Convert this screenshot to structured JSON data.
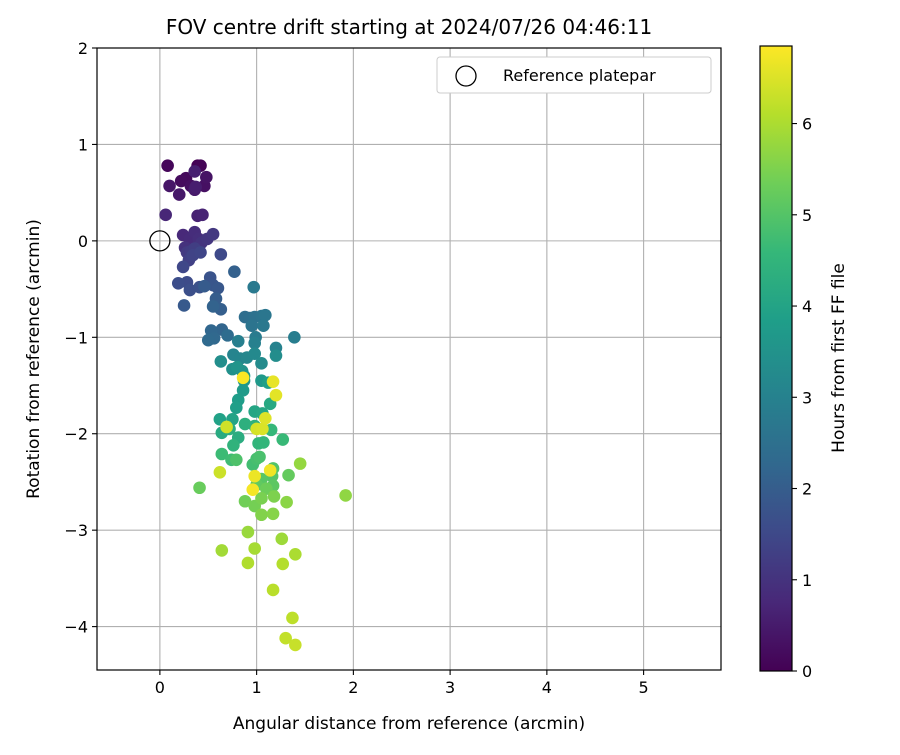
{
  "chart_data": {
    "type": "scatter",
    "title": "FOV centre drift starting at 2024/07/26 04:46:11",
    "xlabel": "Angular distance from reference (arcmin)",
    "ylabel": "Rotation from reference (arcmin)",
    "xlim": [
      -0.65,
      5.8
    ],
    "ylim": [
      -4.45,
      2.0
    ],
    "x_ticks": [
      0,
      1,
      2,
      3,
      4,
      5
    ],
    "y_ticks": [
      2,
      1,
      0,
      -1,
      -2,
      -3,
      -4
    ],
    "x_tick_labels": [
      "0",
      "1",
      "2",
      "3",
      "4",
      "5"
    ],
    "y_tick_labels": [
      "2",
      "1",
      "0",
      "−1",
      "−2",
      "−3",
      "−4"
    ],
    "grid": true,
    "legend": {
      "placement": "top-right",
      "entries": [
        "Reference platepar"
      ]
    },
    "reference_point": {
      "x": 0,
      "y": 0,
      "marker": "open-circle"
    },
    "colorbar": {
      "label": "Hours from first FF file",
      "range": [
        0,
        6.85
      ],
      "ticks": [
        0,
        1,
        2,
        3,
        4,
        5,
        6
      ],
      "tick_labels": [
        "0",
        "1",
        "2",
        "3",
        "4",
        "5",
        "6"
      ],
      "colormap": "viridis",
      "colors": [
        "#440154",
        "#482878",
        "#3e4989",
        "#31688e",
        "#26828e",
        "#1f9e89",
        "#35b779",
        "#6ece58",
        "#b5de2b",
        "#fde725"
      ]
    },
    "series": [
      {
        "points": [
          [
            0.39,
            0.78
          ],
          [
            0.42,
            0.78
          ],
          [
            0.08,
            0.78
          ],
          [
            0.27,
            0.65
          ],
          [
            0.22,
            0.62
          ],
          [
            0.32,
            0.57
          ],
          [
            0.46,
            0.57
          ],
          [
            0.48,
            0.66
          ],
          [
            0.1,
            0.57
          ],
          [
            0.2,
            0.48
          ],
          [
            0.36,
            0.53
          ],
          [
            0.37,
            0.56
          ],
          [
            0.36,
            0.72
          ],
          [
            0.39,
            0.26
          ],
          [
            0.44,
            0.27
          ],
          [
            0.06,
            0.27
          ],
          [
            0.24,
            0.06
          ],
          [
            0.31,
            0.02
          ],
          [
            0.36,
            0.09
          ],
          [
            0.4,
            0.02
          ],
          [
            0.26,
            -0.07
          ],
          [
            0.43,
            -0.02
          ],
          [
            0.49,
            0.02
          ],
          [
            0.55,
            0.07
          ],
          [
            0.28,
            -0.12
          ],
          [
            0.32,
            -0.11
          ],
          [
            0.36,
            -0.08
          ],
          [
            0.3,
            -0.2
          ],
          [
            0.34,
            -0.15
          ],
          [
            0.42,
            -0.12
          ],
          [
            0.24,
            -0.27
          ],
          [
            0.63,
            -0.14
          ],
          [
            0.28,
            -0.43
          ],
          [
            0.19,
            -0.44
          ],
          [
            0.31,
            -0.51
          ],
          [
            0.41,
            -0.48
          ],
          [
            0.52,
            -0.38
          ],
          [
            0.55,
            -0.46
          ],
          [
            0.6,
            -0.49
          ],
          [
            0.25,
            -0.67
          ],
          [
            0.46,
            -0.47
          ],
          [
            0.58,
            -0.6
          ],
          [
            0.63,
            -0.71
          ],
          [
            0.77,
            -0.32
          ],
          [
            0.55,
            -0.68
          ],
          [
            0.64,
            -0.92
          ],
          [
            0.53,
            -0.93
          ],
          [
            0.56,
            -1.01
          ],
          [
            0.5,
            -1.03
          ],
          [
            0.7,
            -0.98
          ]
        ]
      },
      {
        "points": [
          [
            0.88,
            -0.79
          ],
          [
            0.93,
            -0.8
          ],
          [
            0.98,
            -0.79
          ],
          [
            1.05,
            -0.78
          ],
          [
            0.95,
            -0.88
          ],
          [
            1.09,
            -0.77
          ],
          [
            1.07,
            -0.88
          ],
          [
            0.97,
            -0.48
          ],
          [
            0.99,
            -1.0
          ],
          [
            1.39,
            -1.0
          ],
          [
            0.81,
            -1.04
          ],
          [
            0.98,
            -1.06
          ],
          [
            1.2,
            -1.11
          ],
          [
            0.76,
            -1.18
          ],
          [
            0.83,
            -1.22
          ],
          [
            0.9,
            -1.21
          ],
          [
            0.98,
            -1.17
          ],
          [
            1.05,
            -1.27
          ],
          [
            1.2,
            -1.19
          ],
          [
            0.63,
            -1.25
          ],
          [
            0.75,
            -1.33
          ],
          [
            0.85,
            -1.35
          ],
          [
            0.8,
            -1.31
          ],
          [
            0.87,
            -1.4
          ],
          [
            0.87,
            -1.45
          ],
          [
            1.05,
            -1.45
          ],
          [
            0.86,
            -1.55
          ],
          [
            0.81,
            -1.65
          ],
          [
            0.79,
            -1.73
          ],
          [
            1.12,
            -1.47
          ],
          [
            0.62,
            -1.85
          ],
          [
            0.75,
            -1.85
          ],
          [
            0.98,
            -1.77
          ],
          [
            1.06,
            -1.79
          ],
          [
            1.14,
            -1.69
          ],
          [
            0.64,
            -1.99
          ],
          [
            0.81,
            -2.04
          ],
          [
            0.72,
            -1.95
          ],
          [
            0.88,
            -1.9
          ],
          [
            0.98,
            -1.92
          ],
          [
            0.76,
            -2.12
          ],
          [
            1.02,
            -2.1
          ],
          [
            1.07,
            -2.09
          ],
          [
            1.15,
            -1.96
          ],
          [
            1.27,
            -2.06
          ],
          [
            0.64,
            -2.21
          ],
          [
            0.74,
            -2.27
          ],
          [
            0.96,
            -2.32
          ],
          [
            1.0,
            -2.26
          ],
          [
            1.03,
            -2.24
          ]
        ]
      },
      {
        "points": [
          [
            0.79,
            -2.27
          ],
          [
            1.17,
            -2.36
          ],
          [
            1.16,
            -2.44
          ],
          [
            1.05,
            -2.47
          ],
          [
            1.17,
            -2.54
          ],
          [
            1.0,
            -2.53
          ],
          [
            1.33,
            -2.43
          ],
          [
            0.41,
            -2.56
          ],
          [
            1.1,
            -2.57
          ],
          [
            0.88,
            -2.7
          ],
          [
            0.98,
            -2.75
          ],
          [
            1.05,
            -2.67
          ],
          [
            1.18,
            -2.65
          ],
          [
            1.05,
            -2.84
          ],
          [
            1.17,
            -2.83
          ],
          [
            1.31,
            -2.71
          ],
          [
            1.92,
            -2.64
          ],
          [
            1.45,
            -2.31
          ],
          [
            0.91,
            -3.02
          ],
          [
            1.26,
            -3.09
          ],
          [
            0.64,
            -3.21
          ],
          [
            0.98,
            -3.19
          ],
          [
            1.4,
            -3.25
          ],
          [
            0.91,
            -3.34
          ],
          [
            1.27,
            -3.35
          ],
          [
            1.17,
            -3.62
          ],
          [
            1.37,
            -3.91
          ],
          [
            1.3,
            -4.12
          ],
          [
            1.4,
            -4.19
          ],
          [
            0.62,
            -2.4
          ],
          [
            0.69,
            -1.93
          ],
          [
            1.0,
            -1.95
          ],
          [
            1.06,
            -1.95
          ],
          [
            1.09,
            -1.84
          ],
          [
            1.2,
            -1.6
          ],
          [
            1.17,
            -1.46
          ],
          [
            0.98,
            -2.44
          ],
          [
            1.14,
            -2.38
          ],
          [
            0.96,
            -2.58
          ],
          [
            0.86,
            -1.42
          ]
        ]
      }
    ]
  }
}
